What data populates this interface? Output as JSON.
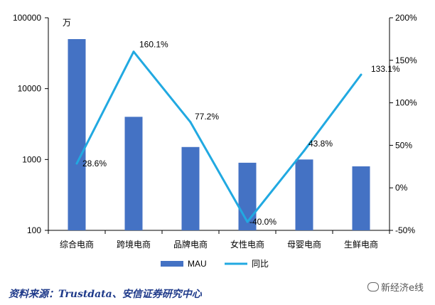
{
  "chart_data": {
    "type": "bar+line",
    "unit_label": "万",
    "categories": [
      "综合电商",
      "跨境电商",
      "品牌电商",
      "女性电商",
      "母婴电商",
      "生鲜电商"
    ],
    "series": [
      {
        "name": "MAU",
        "type": "bar",
        "axis": "left",
        "scale": "log",
        "values": [
          50000,
          4000,
          1500,
          900,
          1000,
          800
        ]
      },
      {
        "name": "同比",
        "type": "line",
        "axis": "right",
        "values": [
          28.6,
          160.1,
          77.2,
          -40.0,
          43.8,
          133.1
        ],
        "labels": [
          "28.6%",
          "160.1%",
          "77.2%",
          "-40.0%",
          "43.8%",
          "133.1%"
        ]
      }
    ],
    "left_axis": {
      "scale": "log",
      "ylim": [
        100,
        100000
      ],
      "ticks": [
        "100",
        "1000",
        "10000",
        "100000"
      ]
    },
    "right_axis": {
      "ylim": [
        -50,
        200
      ],
      "ticks": [
        "200%",
        "150%",
        "100%",
        "50%",
        "0%",
        "-50%"
      ]
    },
    "grid": false,
    "legend": "bottom",
    "colors": {
      "bar": "#4472c4",
      "line": "#21a9e1"
    }
  },
  "source": "资料来源：Trustdata、安信证券研究中心",
  "watermark": "新经济e线"
}
